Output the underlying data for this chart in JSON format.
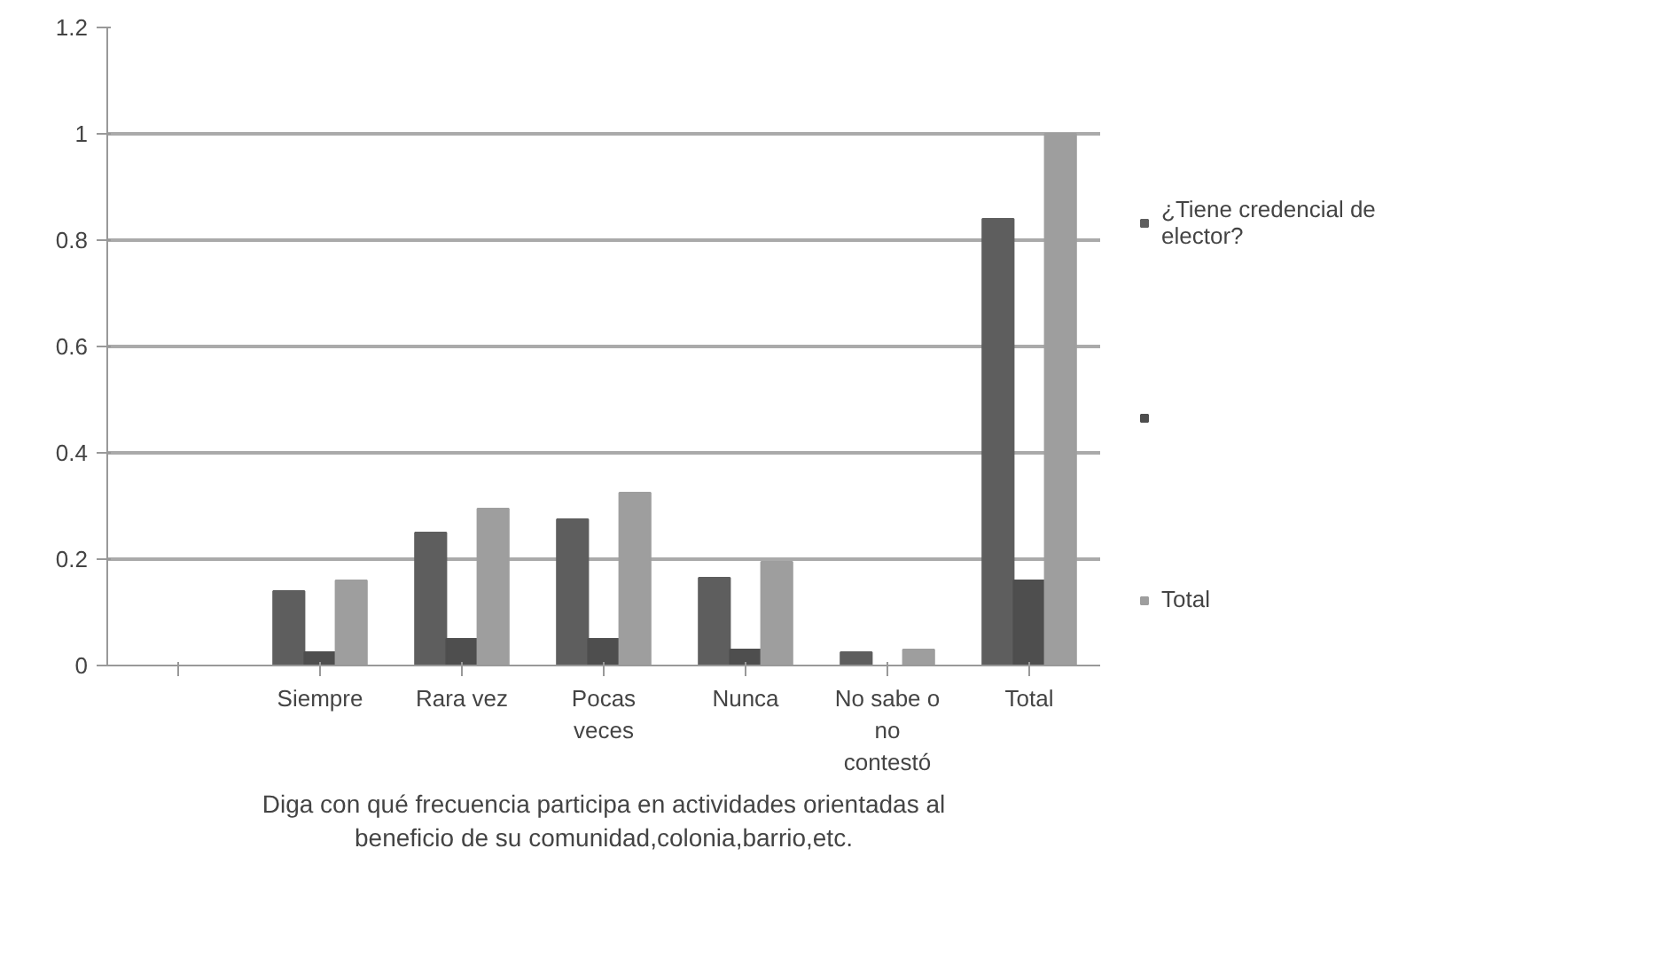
{
  "chart_data": {
    "type": "bar",
    "xlabel": "Diga con qué frecuencia participa en actividades orientadas al beneficio de su comunidad,colonia,barrio,etc.",
    "categories": [
      null,
      "Siempre",
      "Rara vez",
      "Pocas veces",
      "Nunca",
      "No sabe o no contestó",
      "Total"
    ],
    "series": [
      {
        "name": "¿Tiene credencial de elector?",
        "color": "#5e5e5e",
        "values": [
          null,
          0.14,
          0.25,
          0.275,
          0.165,
          0.025,
          0.84
        ]
      },
      {
        "color": "#4e4e4e",
        "values": [
          null,
          0.025,
          0.05,
          0.05,
          0.03,
          0,
          0.16
        ]
      },
      {
        "name": "Total",
        "color": "#9e9e9e",
        "values": [
          null,
          0.16,
          0.295,
          0.325,
          0.195,
          0.03,
          1.0
        ]
      }
    ],
    "ylim": [
      0,
      1.2
    ],
    "yticks": [
      0,
      0.2,
      0.4,
      0.6,
      0.8,
      1,
      1.2
    ],
    "grid": "y",
    "legend": "right"
  }
}
